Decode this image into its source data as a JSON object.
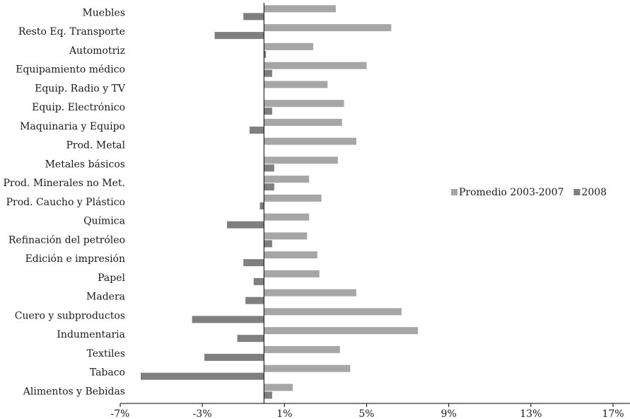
{
  "chart_data": {
    "type": "bar",
    "orientation": "horizontal",
    "title": "",
    "xlabel": "",
    "ylabel": "",
    "categories": [
      "Muebles",
      "Resto Eq. Transporte",
      "Automotriz",
      "Equipamiento médico",
      "Equip. Radio y TV",
      "Equip. Electrónico",
      "Maquinaria y Equipo",
      "Prod. Metal",
      "Metales básicos",
      "Prod. Minerales no Met.",
      "Prod. Caucho y Plástico",
      "Química",
      "Refinación del petróleo",
      "Edición e impresión",
      "Papel",
      "Madera",
      "Cuero y subproductos",
      "Indumentaria",
      "Textiles",
      "Tabaco",
      "Alimentos y Bebidas"
    ],
    "series": [
      {
        "name": "Promedio 2003-2007",
        "color": "#a6a6a6",
        "values": [
          3.5,
          6.2,
          2.4,
          5.0,
          3.1,
          3.9,
          3.8,
          4.5,
          3.6,
          2.2,
          2.8,
          2.2,
          2.1,
          2.6,
          2.7,
          4.5,
          6.7,
          7.5,
          3.7,
          4.2,
          1.4
        ]
      },
      {
        "name": "2008",
        "color": "#7f7f7f",
        "values": [
          -1.0,
          -2.4,
          0.1,
          0.4,
          0.0,
          0.4,
          -0.7,
          0.0,
          0.5,
          0.5,
          -0.2,
          -1.8,
          0.4,
          -1.0,
          -0.5,
          -0.9,
          -3.5,
          -1.3,
          -2.9,
          -6.0,
          0.4
        ]
      }
    ],
    "xlim": [
      -7,
      17
    ],
    "xticks": [
      "-7%",
      "-3%",
      "1%",
      "5%",
      "9%",
      "13%",
      "17%"
    ],
    "xtick_values": [
      -7,
      -3,
      1,
      5,
      9,
      13,
      17
    ],
    "grid": false,
    "legend_position": "right"
  }
}
